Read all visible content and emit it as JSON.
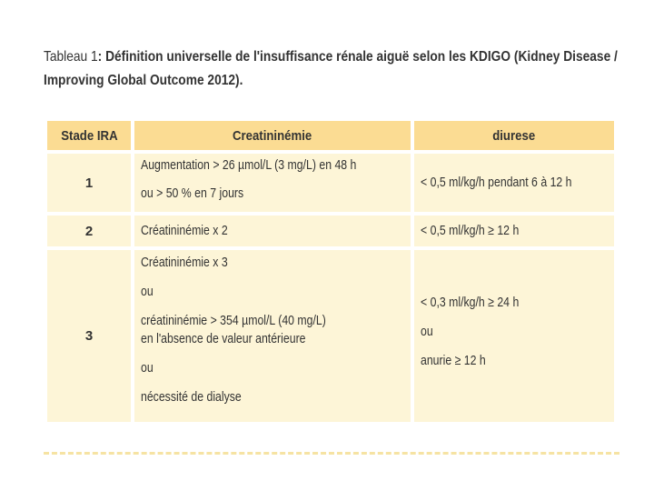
{
  "caption": {
    "prefix": "Tableau 1",
    "line1_rest": ": Définition universelle de l'insuffisance rénale aiguë selon les KDIGO (Kidney Disease /",
    "line2": "Improving Global Outcome 2012)."
  },
  "table": {
    "headers": [
      "Stade IRA",
      "Creatininémie",
      "diurese"
    ],
    "rows": [
      {
        "stage": "1",
        "creatinine": [
          "Augmentation > 26 µmol/L (3 mg/L) en 48 h",
          "ou > 50 % en 7 jours"
        ],
        "diuresis": [
          "< 0,5 ml/kg/h pendant 6 à 12 h"
        ]
      },
      {
        "stage": "2",
        "creatinine": [
          "Créatininémie x 2"
        ],
        "diuresis": [
          "< 0,5 ml/kg/h ≥ 12 h"
        ]
      },
      {
        "stage": "3",
        "creatinine": [
          "Créatininémie x 3",
          "ou",
          "créatininémie > 354 µmol/L (40 mg/L)",
          "en l'absence de valeur antérieure",
          "ou",
          "nécessité de dialyse"
        ],
        "diuresis": [
          "< 0,3 ml/kg/h ≥ 24 h",
          "ou",
          "anurie ≥ 12 h"
        ]
      }
    ]
  },
  "colors": {
    "header_bg": "#fbdc93",
    "body_bg": "#fdf5d7",
    "divider": "#f6e3a3"
  }
}
